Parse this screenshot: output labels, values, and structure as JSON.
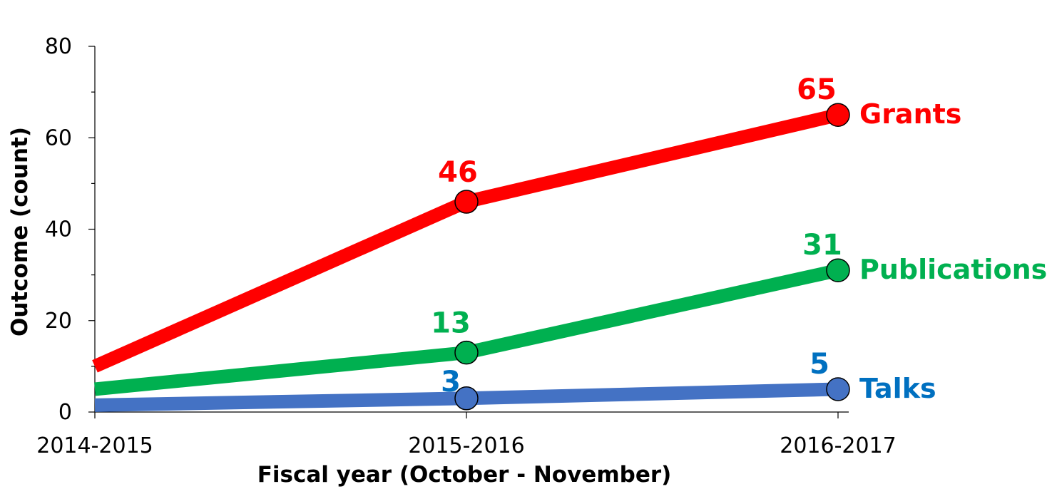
{
  "chart_data": {
    "type": "line",
    "title": "",
    "xlabel": "Fiscal year (October - November)",
    "ylabel": "Outcome (count)",
    "categories": [
      "2014-2015",
      "2015-2016",
      "2016-2017"
    ],
    "ylim": [
      0,
      80
    ],
    "yticks": [
      0,
      20,
      40,
      60,
      80
    ],
    "grid": false,
    "legend": "none (series labeled at line ends)",
    "series": [
      {
        "name": "Grants",
        "values": [
          10,
          46,
          65
        ],
        "labels": [
          null,
          "46",
          "65"
        ],
        "color": "#ff0000"
      },
      {
        "name": "Publications",
        "values": [
          5,
          13,
          31
        ],
        "labels": [
          null,
          "13",
          "31"
        ],
        "color": "#00b050"
      },
      {
        "name": "Talks",
        "values": [
          1.5,
          3,
          5
        ],
        "labels": [
          null,
          "3",
          "5"
        ],
        "color": "#4472c4",
        "label_color": "#0070c0"
      }
    ]
  }
}
